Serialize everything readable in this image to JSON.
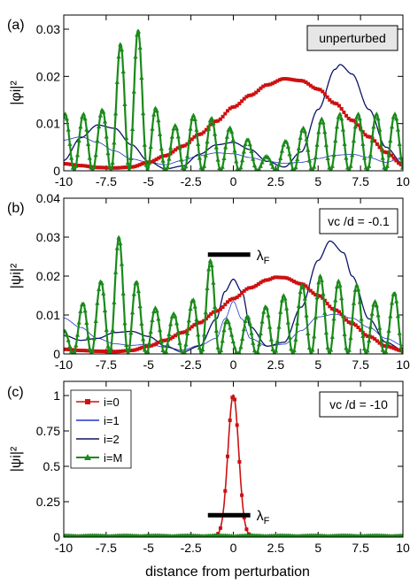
{
  "figure": {
    "xlabel": "distance from perturbation",
    "lambda_label": "λF"
  },
  "chart_data": [
    {
      "type": "line",
      "panel_label": "(a)",
      "ylabel": "|φi|²",
      "annotation": "unperturbed",
      "xlim": [
        -10,
        10
      ],
      "ylim": [
        0,
        0.033
      ],
      "x_ticks": [
        "-10",
        "-7.5",
        "-5",
        "-2.5",
        "0",
        "2.5",
        "5",
        "7.5",
        "10"
      ],
      "y_ticks": [
        {
          "value": 0,
          "label": "0"
        },
        {
          "value": 0.01,
          "label": "0.01"
        },
        {
          "value": 0.02,
          "label": "0.02"
        },
        {
          "value": 0.03,
          "label": "0.03"
        }
      ],
      "series": [
        {
          "name": "i=0",
          "color": "#cc1111",
          "points": [
            [
              -10,
              0.0015
            ],
            [
              -9,
              0.0011
            ],
            [
              -8,
              0.0007
            ],
            [
              -7,
              0.0006
            ],
            [
              -6,
              0.0008
            ],
            [
              -5,
              0.0018
            ],
            [
              -4,
              0.0032
            ],
            [
              -3,
              0.0052
            ],
            [
              -2,
              0.0077
            ],
            [
              -1,
              0.0105
            ],
            [
              0,
              0.0135
            ],
            [
              1,
              0.016
            ],
            [
              2,
              0.0182
            ],
            [
              3,
              0.0195
            ],
            [
              4,
              0.0191
            ],
            [
              5,
              0.0173
            ],
            [
              6,
              0.0143
            ],
            [
              7,
              0.0107
            ],
            [
              8,
              0.0072
            ],
            [
              9,
              0.0039
            ],
            [
              10,
              0.0012
            ]
          ]
        },
        {
          "name": "i=1",
          "color": "#2233cc",
          "points": [
            [
              -10,
              0.0065
            ],
            [
              -9,
              0.0072
            ],
            [
              -8,
              0.006
            ],
            [
              -7,
              0.0042
            ],
            [
              -6,
              0.0025
            ],
            [
              -5,
              0.0018
            ],
            [
              -4,
              0.0013
            ],
            [
              -3,
              0.0022
            ],
            [
              -2,
              0.0032
            ],
            [
              -1,
              0.0038
            ],
            [
              0,
              0.0036
            ],
            [
              1,
              0.0028
            ],
            [
              2,
              0.002
            ],
            [
              3,
              0.0016
            ],
            [
              4,
              0.0018
            ],
            [
              5,
              0.0026
            ],
            [
              6,
              0.0033
            ],
            [
              7,
              0.0035
            ],
            [
              8,
              0.0028
            ],
            [
              9,
              0.0018
            ],
            [
              10,
              0.0028
            ]
          ]
        },
        {
          "name": "i=2",
          "color": "#0b1466",
          "points": [
            [
              -10,
              0.0022
            ],
            [
              -9,
              0.007
            ],
            [
              -8,
              0.0097
            ],
            [
              -7,
              0.009
            ],
            [
              -6,
              0.0055
            ],
            [
              -5,
              0.002
            ],
            [
              -4,
              0.0004
            ],
            [
              -3,
              0.001
            ],
            [
              -2,
              0.0035
            ],
            [
              -1,
              0.0055
            ],
            [
              0,
              0.006
            ],
            [
              1,
              0.0045
            ],
            [
              2,
              0.002
            ],
            [
              3,
              0.0008
            ],
            [
              4,
              0.004
            ],
            [
              5,
              0.013
            ],
            [
              6,
              0.0215
            ],
            [
              6.3,
              0.0225
            ],
            [
              7,
              0.0205
            ],
            [
              8,
              0.013
            ],
            [
              9,
              0.005
            ],
            [
              10,
              0.0015
            ]
          ]
        },
        {
          "name": "i=M",
          "color": "#1a8a1a",
          "amp": [
            [
              -10,
              0.012
            ],
            [
              -8,
              0.012
            ],
            [
              -6,
              0.032
            ],
            [
              -4,
              0.009
            ],
            [
              -2,
              0.012
            ],
            [
              0,
              0.009
            ],
            [
              2,
              0.003
            ],
            [
              4,
              0.009
            ],
            [
              6,
              0.012
            ],
            [
              8,
              0.012
            ],
            [
              10,
              0.012
            ]
          ],
          "period": 1.08,
          "phase": -5.6
        }
      ]
    },
    {
      "type": "line",
      "panel_label": "(b)",
      "ylabel": "|ψi|²",
      "annotation": "vc /d = -0.1",
      "xlim": [
        -10,
        10
      ],
      "ylim": [
        0,
        0.04
      ],
      "lambda_marker": {
        "x_start": -1.5,
        "x_end": 1.0,
        "y": 0.0255
      },
      "x_ticks": [
        "-10",
        "-7.5",
        "-5",
        "-2.5",
        "0",
        "2.5",
        "5",
        "7.5",
        "10"
      ],
      "y_ticks": [
        {
          "value": 0,
          "label": "0"
        },
        {
          "value": 0.01,
          "label": "0.01"
        },
        {
          "value": 0.02,
          "label": "0.02"
        },
        {
          "value": 0.03,
          "label": "0.03"
        },
        {
          "value": 0.04,
          "label": "0.04"
        }
      ],
      "series": [
        {
          "name": "i=0",
          "color": "#cc1111",
          "points": [
            [
              -10,
              0.0012
            ],
            [
              -9,
              0.0009
            ],
            [
              -8,
              0.0007
            ],
            [
              -7,
              0.0006
            ],
            [
              -6,
              0.0009
            ],
            [
              -5,
              0.002
            ],
            [
              -4,
              0.0035
            ],
            [
              -3,
              0.0055
            ],
            [
              -2,
              0.008
            ],
            [
              -1,
              0.011
            ],
            [
              0,
              0.0142
            ],
            [
              1,
              0.017
            ],
            [
              2,
              0.019
            ],
            [
              2.5,
              0.0197
            ],
            [
              3,
              0.0196
            ],
            [
              4,
              0.018
            ],
            [
              5,
              0.015
            ],
            [
              6,
              0.0113
            ],
            [
              7,
              0.0078
            ],
            [
              8,
              0.0045
            ],
            [
              9,
              0.002
            ],
            [
              10,
              0.0008
            ]
          ]
        },
        {
          "name": "i=1",
          "color": "#2233cc",
          "points": [
            [
              -10,
              0.0092
            ],
            [
              -9,
              0.0068
            ],
            [
              -8,
              0.004
            ],
            [
              -7,
              0.0026
            ],
            [
              -6,
              0.0022
            ],
            [
              -5,
              0.0025
            ],
            [
              -4,
              0.0017
            ],
            [
              -3,
              0.001
            ],
            [
              -2,
              0.0022
            ],
            [
              -1,
              0.004
            ],
            [
              -0.5,
              0.009
            ],
            [
              0,
              0.0135
            ],
            [
              0.5,
              0.009
            ],
            [
              1,
              0.004
            ],
            [
              2,
              0.002
            ],
            [
              3,
              0.0025
            ],
            [
              4,
              0.006
            ],
            [
              5,
              0.0095
            ],
            [
              6,
              0.0102
            ],
            [
              7,
              0.0092
            ],
            [
              8,
              0.0068
            ],
            [
              9,
              0.004
            ],
            [
              10,
              0.0022
            ]
          ]
        },
        {
          "name": "i=2",
          "color": "#0b1466",
          "points": [
            [
              -10,
              0.0048
            ],
            [
              -9,
              0.0035
            ],
            [
              -8,
              0.004
            ],
            [
              -7,
              0.0055
            ],
            [
              -6,
              0.0058
            ],
            [
              -5,
              0.0045
            ],
            [
              -4,
              0.002
            ],
            [
              -3,
              0.0005
            ],
            [
              -2,
              0.002
            ],
            [
              -1,
              0.009
            ],
            [
              -0.5,
              0.016
            ],
            [
              0,
              0.0192
            ],
            [
              0.5,
              0.016
            ],
            [
              1,
              0.007
            ],
            [
              2,
              0.002
            ],
            [
              3,
              0.003
            ],
            [
              4,
              0.012
            ],
            [
              5,
              0.024
            ],
            [
              5.7,
              0.029
            ],
            [
              6.5,
              0.026
            ],
            [
              7,
              0.02
            ],
            [
              8,
              0.009
            ],
            [
              9,
              0.003
            ],
            [
              10,
              0.001
            ]
          ]
        },
        {
          "name": "i=M",
          "color": "#1a8a1a",
          "amp": [
            [
              -10,
              0.006
            ],
            [
              -8,
              0.018
            ],
            [
              -6.7,
              0.03
            ],
            [
              -5,
              0.012
            ],
            [
              -3,
              0.01
            ],
            [
              -1.3,
              0.024
            ],
            [
              0,
              0.006
            ],
            [
              1,
              0.01
            ],
            [
              3,
              0.015
            ],
            [
              5,
              0.02
            ],
            [
              7,
              0.018
            ],
            [
              9,
              0.012
            ],
            [
              10,
              0.02
            ]
          ],
          "period": 1.08,
          "phase": -6.75
        }
      ]
    },
    {
      "type": "line",
      "panel_label": "(c)",
      "ylabel": "|ψi|²",
      "annotation": "vc /d = -10",
      "xlim": [
        -10,
        10
      ],
      "ylim": [
        0,
        1.1
      ],
      "lambda_marker": {
        "x_start": -1.5,
        "x_end": 1.0,
        "y": 0.155
      },
      "x_ticks": [
        "-10",
        "-7.5",
        "-5",
        "-2.5",
        "0",
        "2.5",
        "5",
        "7.5",
        "10"
      ],
      "y_ticks": [
        {
          "value": 0,
          "label": "0"
        },
        {
          "value": 0.25,
          "label": "0.25"
        },
        {
          "value": 0.5,
          "label": "0.5"
        },
        {
          "value": 0.75,
          "label": "0.75"
        },
        {
          "value": 1,
          "label": "1"
        }
      ],
      "legend": {
        "placement": "top-left",
        "entries": [
          "i=0",
          "i=1",
          "i=2",
          "i=M"
        ]
      },
      "series": [
        {
          "name": "i=0",
          "color": "#cc1111",
          "peak": {
            "x": 0,
            "y": 1.0,
            "width": 0.45
          },
          "floor": 0.006
        },
        {
          "name": "i=1",
          "color": "#2233cc",
          "floor": 0.004
        },
        {
          "name": "i=2",
          "color": "#0b1466",
          "floor": 0.003
        },
        {
          "name": "i=M",
          "color": "#1a8a1a",
          "floor": 0.01
        }
      ]
    }
  ]
}
